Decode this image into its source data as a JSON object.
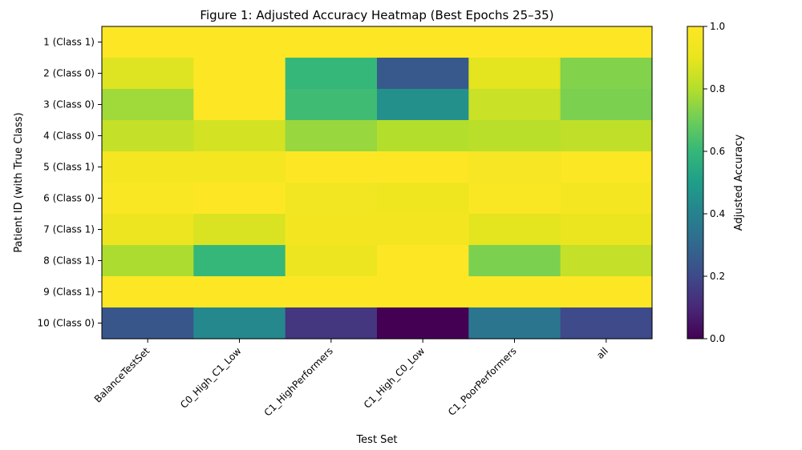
{
  "chart_data": {
    "type": "heatmap",
    "title": "Figure 1: Adjusted Accuracy Heatmap (Best Epochs 25–35)",
    "xlabel": "Test Set",
    "ylabel": "Patient ID (with True Class)",
    "colorbar_label": "Adjusted Accuracy",
    "colormap": "viridis",
    "vmin": 0.0,
    "vmax": 1.0,
    "colorbar_ticks": [
      "0.0",
      "0.2",
      "0.4",
      "0.6",
      "0.8",
      "1.0"
    ],
    "columns": [
      "BalanceTestSet",
      "C0_High_C1_Low",
      "C1_HighPerformers",
      "C1_High_C0_Low",
      "C1_PoorPerformers",
      "all"
    ],
    "rows": [
      "1 (Class 1)",
      "2 (Class 0)",
      "3 (Class 0)",
      "4 (Class 0)",
      "5 (Class 1)",
      "6 (Class 0)",
      "7 (Class 1)",
      "8 (Class 1)",
      "9 (Class 1)",
      "10 (Class 0)"
    ],
    "values": [
      [
        1.0,
        1.0,
        1.0,
        1.0,
        1.0,
        1.0
      ],
      [
        0.88,
        1.0,
        0.6,
        0.25,
        0.89,
        0.73
      ],
      [
        0.77,
        1.0,
        0.62,
        0.45,
        0.84,
        0.72
      ],
      [
        0.83,
        0.86,
        0.76,
        0.8,
        0.81,
        0.82
      ],
      [
        0.96,
        0.96,
        1.0,
        1.0,
        0.97,
        0.99
      ],
      [
        0.98,
        1.0,
        0.94,
        0.93,
        0.98,
        0.96
      ],
      [
        0.92,
        0.87,
        0.95,
        0.95,
        0.89,
        0.91
      ],
      [
        0.79,
        0.6,
        0.92,
        1.0,
        0.72,
        0.83
      ],
      [
        1.0,
        1.0,
        1.0,
        1.0,
        1.0,
        1.0
      ],
      [
        0.24,
        0.42,
        0.14,
        0.0,
        0.35,
        0.2
      ]
    ]
  }
}
